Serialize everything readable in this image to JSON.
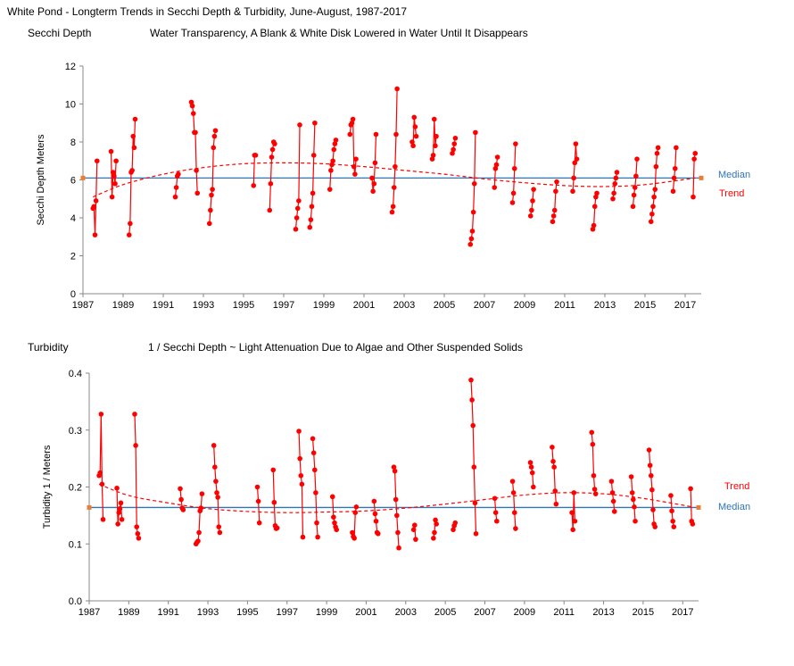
{
  "title": "White Pond -  Longterm Trends in Secchi Depth & Turbidity,  June-August,  1987-2017",
  "colors": {
    "points": "#ff0000",
    "median": "#2e75b6",
    "trend": "#ff0000",
    "median_marker": "#ed7d31",
    "axis": "#888888"
  },
  "chart_data": [
    {
      "type": "line",
      "title": "Secchi Depth",
      "subtitle": "Water Transparency,  A Blank & White Disk Lowered in Water Until It Disappears",
      "xlabel": "",
      "ylabel": "Secchi  Depth  Meters",
      "xlim": [
        1987,
        2017.8
      ],
      "ylim": [
        0,
        12
      ],
      "x_ticks": [
        "1987",
        "1989",
        "1991",
        "1993",
        "1995",
        "1997",
        "1999",
        "2001",
        "2003",
        "2005",
        "2007",
        "2009",
        "2011",
        "2013",
        "2015",
        "2017"
      ],
      "y_ticks": [
        "0",
        "2",
        "4",
        "6",
        "8",
        "10",
        "12"
      ],
      "grid": false,
      "series": [
        {
          "name": "",
          "x": [
            1987.5,
            1987.55,
            1987.6,
            1987.65,
            1987.7,
            1988.4,
            1988.45,
            1988.5,
            1988.55,
            1988.6,
            1988.65,
            1989.3,
            1989.35,
            1989.4,
            1989.45,
            1989.5,
            1989.55,
            1989.6,
            1991.6,
            1991.65,
            1991.7,
            1991.75,
            1992.4,
            1992.45,
            1992.5,
            1992.55,
            1992.6,
            1992.65,
            1992.7,
            1993.3,
            1993.35,
            1993.4,
            1993.45,
            1993.5,
            1993.55,
            1993.6,
            1995.5,
            1995.55,
            1995.6,
            1996.3,
            1996.35,
            1996.4,
            1996.45,
            1996.5,
            1996.55,
            1997.6,
            1997.65,
            1997.7,
            1997.75,
            1997.8,
            1998.3,
            1998.35,
            1998.4,
            1998.45,
            1998.5,
            1998.55,
            1999.3,
            1999.35,
            1999.4,
            1999.45,
            1999.5,
            1999.55,
            1999.6,
            2000.3,
            2000.35,
            2000.4,
            2000.45,
            2000.5,
            2000.55,
            2000.6,
            2001.4,
            2001.45,
            2001.5,
            2001.55,
            2001.6,
            2002.4,
            2002.45,
            2002.5,
            2002.55,
            2002.6,
            2002.65,
            2003.4,
            2003.45,
            2003.5,
            2003.55,
            2003.6,
            2004.4,
            2004.45,
            2004.5,
            2004.55,
            2004.6,
            2005.4,
            2005.45,
            2005.5,
            2005.55,
            2006.3,
            2006.35,
            2006.4,
            2006.45,
            2006.5,
            2006.55,
            2007.5,
            2007.55,
            2007.6,
            2007.65,
            2008.4,
            2008.45,
            2008.5,
            2008.55,
            2009.3,
            2009.35,
            2009.4,
            2009.45,
            2010.4,
            2010.45,
            2010.5,
            2010.55,
            2010.6,
            2011.4,
            2011.45,
            2011.5,
            2011.55,
            2011.6,
            2012.4,
            2012.45,
            2012.5,
            2012.55,
            2012.6,
            2013.4,
            2013.45,
            2013.5,
            2013.55,
            2013.6,
            2014.4,
            2014.45,
            2014.5,
            2014.55,
            2014.6,
            2015.3,
            2015.35,
            2015.4,
            2015.45,
            2015.5,
            2015.55,
            2015.6,
            2015.65,
            2016.4,
            2016.45,
            2016.5,
            2016.55,
            2017.4,
            2017.45,
            2017.5
          ],
          "y": [
            4.5,
            4.6,
            3.1,
            4.9,
            7.0,
            7.5,
            5.1,
            6.4,
            6.2,
            5.8,
            7.0,
            3.1,
            3.7,
            6.4,
            6.5,
            8.3,
            7.7,
            9.2,
            5.1,
            5.6,
            6.2,
            6.3,
            10.1,
            9.9,
            9.5,
            8.5,
            8.5,
            6.5,
            5.3,
            3.7,
            4.4,
            5.2,
            5.5,
            7.7,
            8.3,
            8.6,
            5.7,
            7.3,
            7.3,
            4.4,
            5.8,
            7.2,
            7.6,
            8.0,
            7.9,
            3.4,
            4.0,
            4.5,
            4.9,
            8.9,
            3.5,
            3.9,
            4.6,
            5.3,
            7.3,
            9.0,
            5.5,
            6.5,
            6.8,
            7.0,
            7.6,
            7.9,
            8.1,
            8.4,
            8.9,
            9.0,
            9.2,
            6.7,
            6.3,
            7.1,
            6.1,
            5.4,
            5.8,
            6.9,
            8.4,
            4.3,
            4.6,
            5.6,
            6.7,
            8.4,
            10.8,
            8.0,
            7.8,
            9.3,
            8.8,
            8.3,
            7.1,
            7.3,
            9.2,
            7.8,
            8.3,
            7.4,
            7.6,
            7.9,
            8.2,
            2.6,
            2.9,
            3.3,
            4.3,
            5.8,
            8.5,
            5.6,
            6.6,
            6.8,
            7.2,
            4.8,
            5.3,
            6.6,
            7.9,
            4.1,
            4.4,
            4.9,
            5.5,
            3.8,
            4.1,
            4.4,
            5.4,
            5.9,
            5.4,
            6.1,
            6.9,
            7.9,
            7.1,
            3.4,
            3.6,
            4.6,
            5.1,
            5.3,
            5.0,
            5.3,
            5.8,
            6.1,
            6.4,
            4.6,
            5.2,
            5.6,
            6.2,
            7.1,
            3.8,
            4.2,
            4.6,
            5.1,
            5.5,
            6.7,
            7.4,
            7.7,
            5.4,
            6.1,
            6.6,
            7.7,
            5.1,
            7.1,
            7.4
          ]
        }
      ],
      "median": 6.1,
      "median_label": "Median",
      "trend_label": "Trend",
      "trend_x": [
        1987.5,
        1989,
        1991,
        1993,
        1995,
        1997,
        1999,
        2001,
        2003,
        2005,
        2007,
        2009,
        2011,
        2013,
        2015,
        2017.5
      ],
      "trend_y": [
        5.1,
        5.75,
        6.3,
        6.65,
        6.85,
        6.9,
        6.85,
        6.7,
        6.5,
        6.3,
        6.05,
        5.85,
        5.7,
        5.65,
        5.75,
        6.1
      ]
    },
    {
      "type": "line",
      "title": "Turbidity",
      "subtitle": "1 / Secchi Depth   ~  Light Attenuation Due to Algae and Other Suspended Solids",
      "xlabel": "",
      "ylabel": "Turbidity     1 / Meters",
      "xlim": [
        1987,
        2017.8
      ],
      "ylim": [
        0,
        0.4
      ],
      "x_ticks": [
        "1987",
        "1989",
        "1991",
        "1993",
        "1995",
        "1997",
        "1999",
        "2001",
        "2003",
        "2005",
        "2007",
        "2009",
        "2011",
        "2013",
        "2015",
        "2017"
      ],
      "y_ticks": [
        "0.0",
        "0.1",
        "0.2",
        "0.3",
        "0.4"
      ],
      "grid": false,
      "series": [
        {
          "name": "",
          "x": [
            1987.5,
            1987.55,
            1987.6,
            1987.65,
            1987.7,
            1988.4,
            1988.45,
            1988.5,
            1988.55,
            1988.6,
            1988.65,
            1989.3,
            1989.35,
            1989.4,
            1989.45,
            1989.5,
            1991.6,
            1991.65,
            1991.7,
            1991.75,
            1992.4,
            1992.45,
            1992.5,
            1992.55,
            1992.6,
            1992.65,
            1992.7,
            1993.3,
            1993.35,
            1993.4,
            1993.45,
            1993.5,
            1993.55,
            1993.6,
            1995.5,
            1995.55,
            1995.6,
            1996.3,
            1996.35,
            1996.4,
            1996.45,
            1996.5,
            1997.6,
            1997.65,
            1997.7,
            1997.75,
            1997.8,
            1998.3,
            1998.35,
            1998.4,
            1998.45,
            1998.5,
            1998.55,
            1999.3,
            1999.35,
            1999.4,
            1999.45,
            1999.5,
            2000.3,
            2000.35,
            2000.4,
            2000.45,
            2000.5,
            2001.4,
            2001.45,
            2001.5,
            2001.55,
            2001.6,
            2002.4,
            2002.45,
            2002.5,
            2002.55,
            2002.6,
            2002.65,
            2003.4,
            2003.45,
            2003.5,
            2004.4,
            2004.45,
            2004.5,
            2004.55,
            2005.4,
            2005.45,
            2005.5,
            2006.3,
            2006.35,
            2006.4,
            2006.45,
            2006.5,
            2006.55,
            2007.5,
            2007.55,
            2007.6,
            2008.4,
            2008.45,
            2008.5,
            2008.55,
            2009.3,
            2009.35,
            2009.4,
            2009.45,
            2010.4,
            2010.45,
            2010.5,
            2010.55,
            2010.6,
            2011.4,
            2011.45,
            2011.5,
            2011.55,
            2012.4,
            2012.45,
            2012.5,
            2012.55,
            2012.6,
            2013.4,
            2013.45,
            2013.5,
            2013.55,
            2014.4,
            2014.45,
            2014.5,
            2014.55,
            2014.6,
            2015.3,
            2015.35,
            2015.4,
            2015.45,
            2015.5,
            2015.55,
            2015.6,
            2016.4,
            2016.45,
            2016.5,
            2016.55,
            2017.4,
            2017.45,
            2017.5
          ],
          "y": [
            0.22,
            0.225,
            0.328,
            0.205,
            0.143,
            0.198,
            0.135,
            0.155,
            0.162,
            0.172,
            0.143,
            0.328,
            0.273,
            0.13,
            0.118,
            0.11,
            0.197,
            0.178,
            0.163,
            0.16,
            0.1,
            0.103,
            0.105,
            0.12,
            0.158,
            0.163,
            0.188,
            0.273,
            0.235,
            0.21,
            0.19,
            0.182,
            0.13,
            0.12,
            0.2,
            0.175,
            0.137,
            0.23,
            0.173,
            0.132,
            0.127,
            0.128,
            0.298,
            0.25,
            0.22,
            0.205,
            0.112,
            0.285,
            0.26,
            0.23,
            0.19,
            0.137,
            0.112,
            0.183,
            0.147,
            0.137,
            0.13,
            0.125,
            0.12,
            0.113,
            0.11,
            0.155,
            0.165,
            0.175,
            0.153,
            0.14,
            0.12,
            0.118,
            0.235,
            0.228,
            0.178,
            0.15,
            0.12,
            0.093,
            0.125,
            0.133,
            0.108,
            0.11,
            0.12,
            0.142,
            0.135,
            0.125,
            0.132,
            0.137,
            0.388,
            0.353,
            0.308,
            0.235,
            0.172,
            0.118,
            0.18,
            0.155,
            0.14,
            0.21,
            0.19,
            0.155,
            0.127,
            0.243,
            0.235,
            0.225,
            0.2,
            0.27,
            0.245,
            0.235,
            0.193,
            0.17,
            0.155,
            0.125,
            0.19,
            0.14,
            0.296,
            0.275,
            0.22,
            0.196,
            0.188,
            0.21,
            0.19,
            0.175,
            0.157,
            0.218,
            0.19,
            0.178,
            0.165,
            0.14,
            0.265,
            0.238,
            0.22,
            0.195,
            0.16,
            0.135,
            0.13,
            0.185,
            0.158,
            0.14,
            0.13,
            0.197,
            0.14,
            0.135
          ]
        }
      ],
      "median": 0.164,
      "median_label": "Median",
      "trend_label": "Trend",
      "trend_x": [
        1987.5,
        1989,
        1991,
        1993,
        1995,
        1997,
        1999,
        2001,
        2003,
        2005,
        2007,
        2009,
        2011,
        2013,
        2015,
        2017.5
      ],
      "trend_y": [
        0.205,
        0.185,
        0.172,
        0.162,
        0.157,
        0.155,
        0.156,
        0.158,
        0.163,
        0.17,
        0.178,
        0.186,
        0.19,
        0.188,
        0.18,
        0.165
      ]
    }
  ]
}
